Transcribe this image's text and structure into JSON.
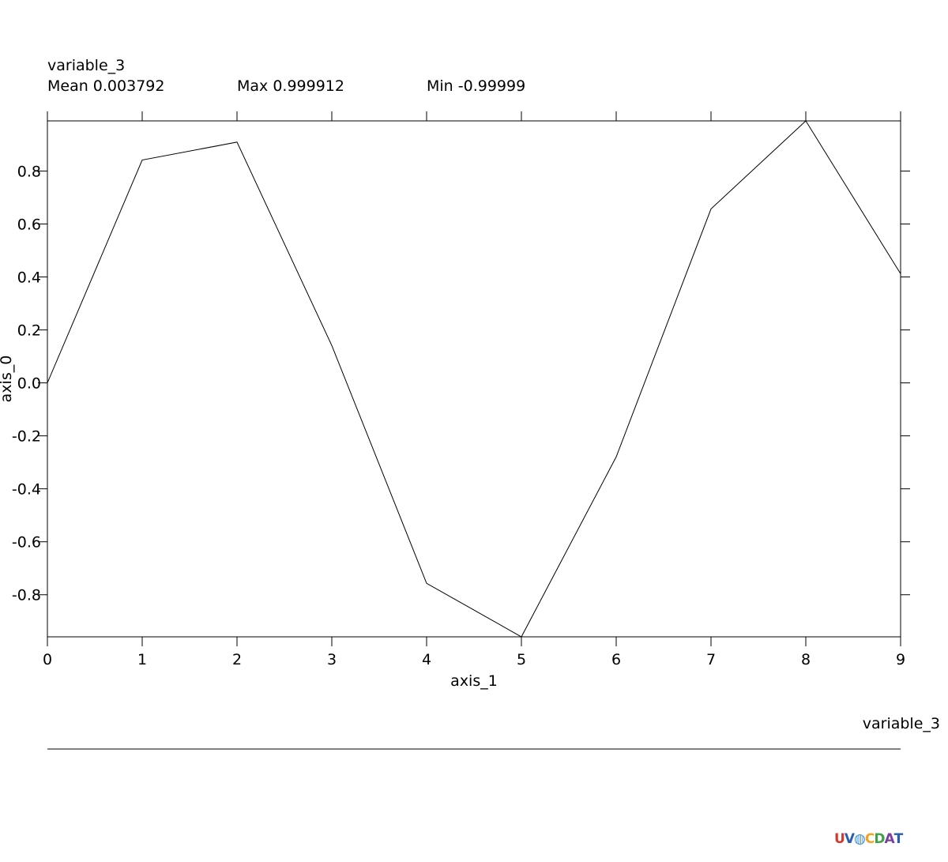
{
  "header": {
    "variable_name": "variable_3",
    "mean_text": "Mean 0.003792",
    "max_text": "Max 0.999912",
    "min_text": "Min -0.99999"
  },
  "legend": {
    "label": "variable_3"
  },
  "logo": {
    "letters": [
      "U",
      "V",
      "◍",
      "C",
      "D",
      "A",
      "T"
    ],
    "colors": [
      "#d6382f",
      "#2a5db0",
      "#3a8fd6",
      "#f2a21b",
      "#3fa14a",
      "#7a3ea0",
      "#2a5db0"
    ]
  },
  "chart_data": {
    "type": "line",
    "title": "variable_3",
    "xlabel": "axis_1",
    "ylabel": "axis_0",
    "x": [
      0,
      1,
      2,
      3,
      4,
      5,
      6,
      7,
      8,
      9
    ],
    "series": [
      {
        "name": "variable_3",
        "values": [
          0.0,
          0.8415,
          0.9093,
          0.1411,
          -0.7568,
          -0.9589,
          -0.2794,
          0.657,
          0.9894,
          0.4121
        ]
      }
    ],
    "xlim": [
      0,
      9
    ],
    "ylim": [
      -0.9589,
      0.9894
    ],
    "xticks": [
      "0",
      "1",
      "2",
      "3",
      "4",
      "5",
      "6",
      "7",
      "8",
      "9"
    ],
    "yticks": [
      {
        "value": 0.8,
        "label": "0.8"
      },
      {
        "value": 0.6,
        "label": "0.6"
      },
      {
        "value": 0.4,
        "label": "0.4"
      },
      {
        "value": 0.2,
        "label": "0.2"
      },
      {
        "value": 0.0,
        "label": "0.0"
      },
      {
        "value": -0.2,
        "label": "-0.2"
      },
      {
        "value": -0.4,
        "label": "-0.4"
      },
      {
        "value": -0.6,
        "label": "-0.6"
      },
      {
        "value": -0.8,
        "label": "-0.8"
      }
    ],
    "grid": false,
    "line_color": "#000000"
  }
}
